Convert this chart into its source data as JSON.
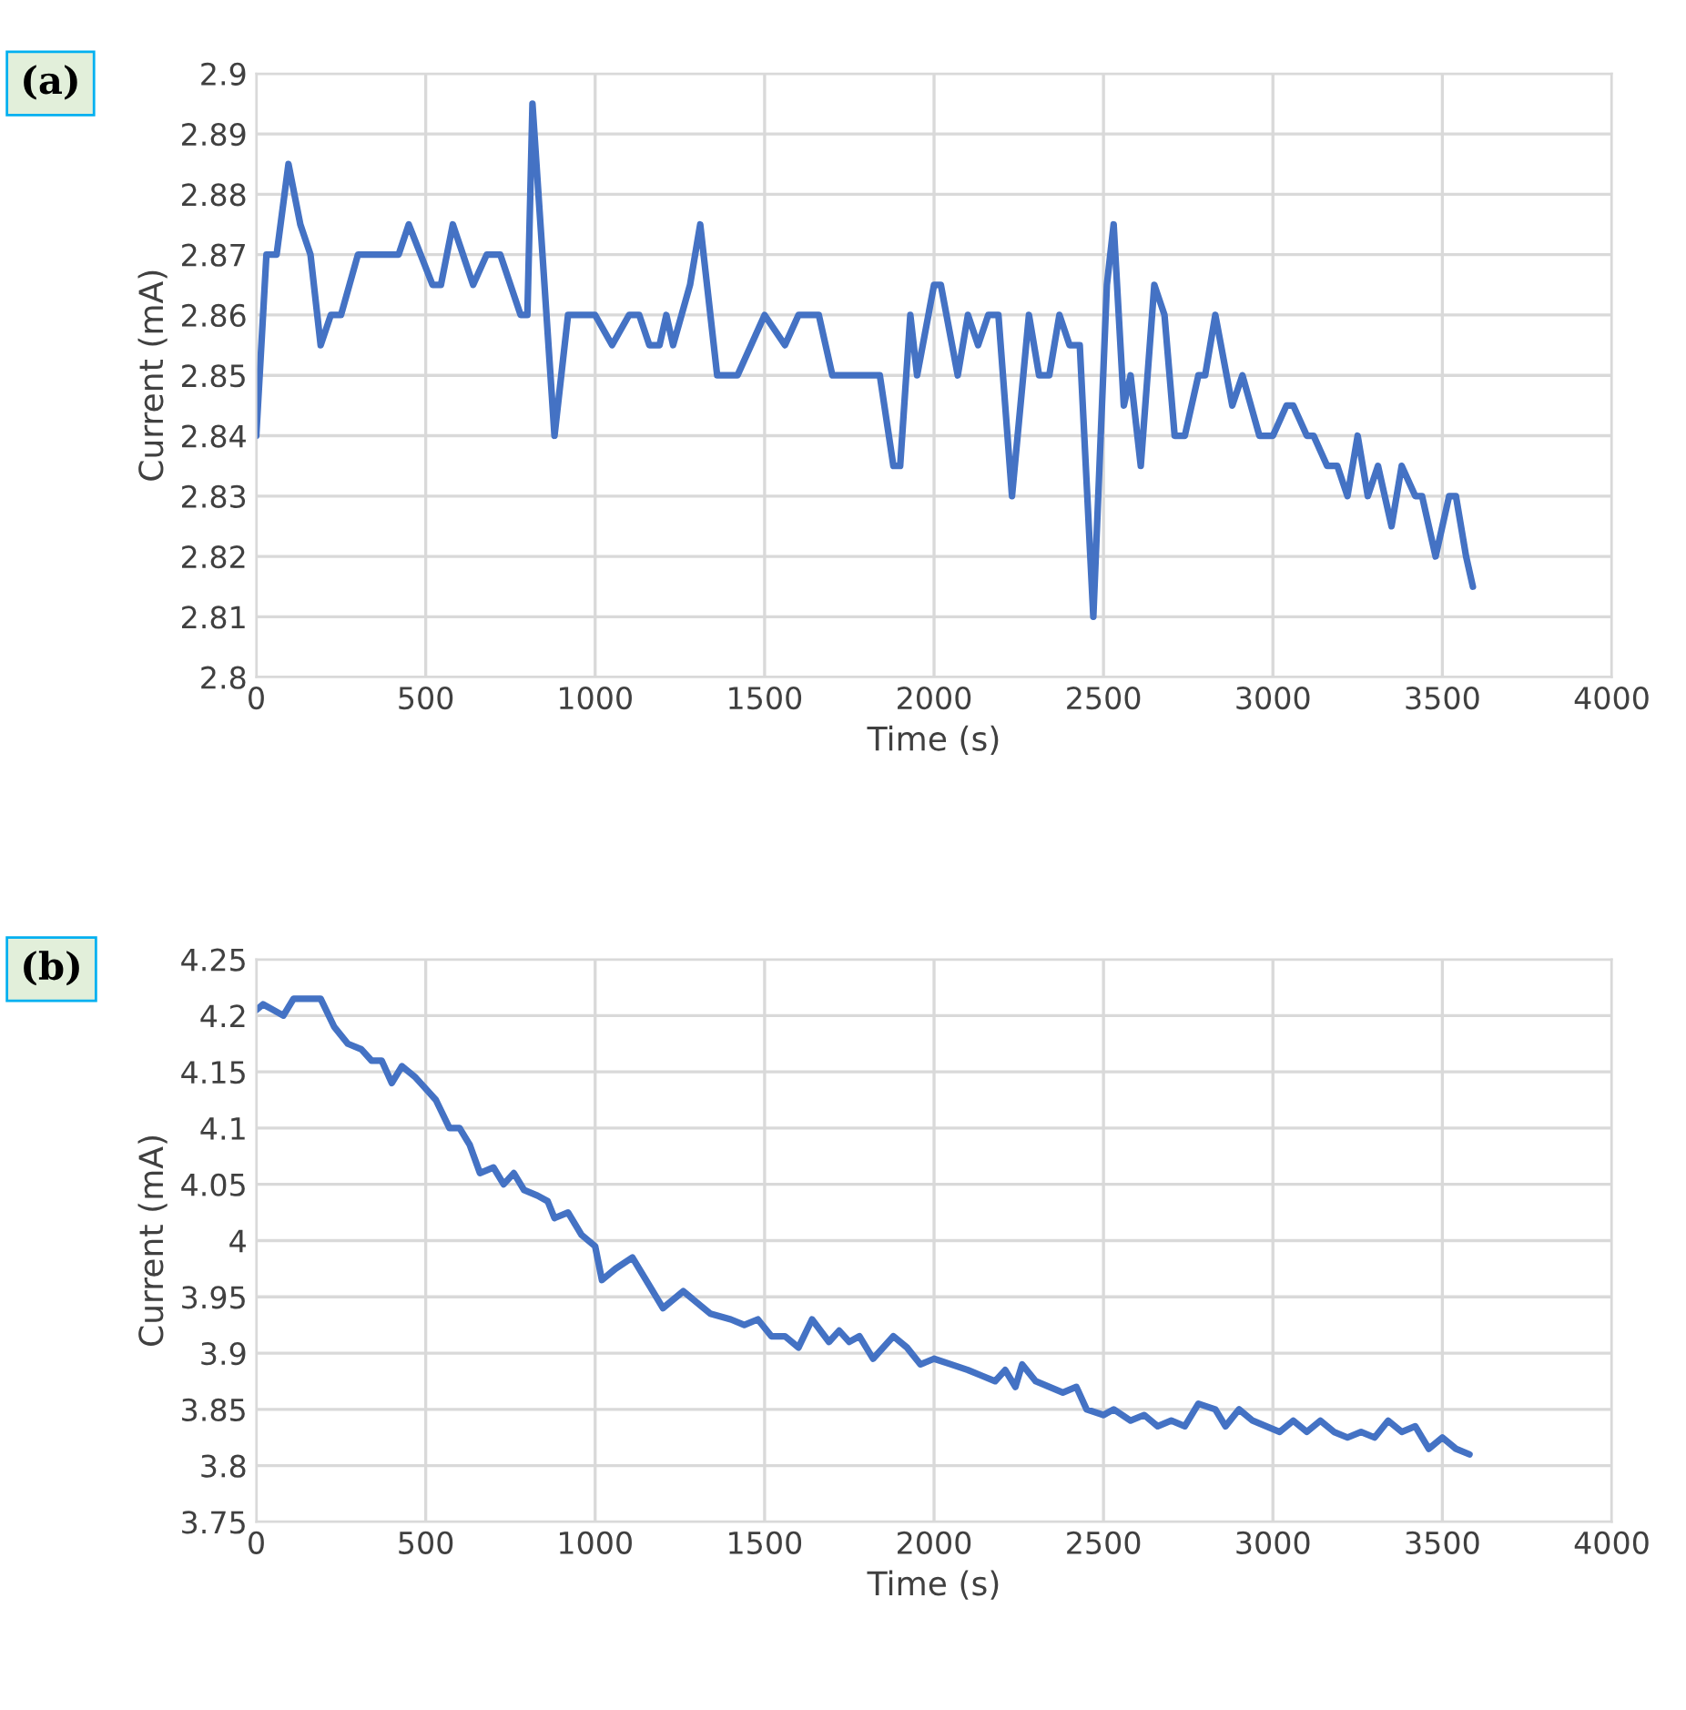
{
  "chart_data": [
    {
      "type": "line",
      "xlabel": "Time (s)",
      "ylabel": "Current (mA)",
      "annotations": [
        "(a)"
      ],
      "grid": true,
      "legend": false,
      "marker": "none",
      "line_style": "solid",
      "xlim": [
        0,
        4000
      ],
      "xticks": [
        0,
        500,
        1000,
        1500,
        2000,
        2500,
        3000,
        3500,
        4000
      ],
      "ylim": [
        2.8,
        2.9
      ],
      "yticks": [
        2.8,
        2.81,
        2.82,
        2.83,
        2.84,
        2.85,
        2.86,
        2.87,
        2.88,
        2.89,
        2.9
      ],
      "series": [
        {
          "color": "#4472c4",
          "x": [
            0,
            30,
            60,
            95,
            130,
            160,
            190,
            220,
            250,
            300,
            350,
            420,
            450,
            520,
            545,
            580,
            640,
            680,
            720,
            780,
            800,
            815,
            880,
            920,
            980,
            1000,
            1050,
            1100,
            1130,
            1160,
            1190,
            1210,
            1230,
            1280,
            1310,
            1360,
            1420,
            1500,
            1560,
            1600,
            1660,
            1700,
            1800,
            1840,
            1880,
            1900,
            1930,
            1950,
            2000,
            2020,
            2070,
            2100,
            2130,
            2160,
            2190,
            2230,
            2280,
            2310,
            2340,
            2370,
            2400,
            2430,
            2470,
            2510,
            2530,
            2560,
            2580,
            2610,
            2650,
            2680,
            2710,
            2740,
            2780,
            2800,
            2830,
            2880,
            2910,
            2960,
            3000,
            3040,
            3060,
            3100,
            3120,
            3160,
            3190,
            3220,
            3250,
            3280,
            3310,
            3350,
            3380,
            3420,
            3440,
            3480,
            3520,
            3540,
            3570,
            3590
          ],
          "values": [
            2.84,
            2.87,
            2.87,
            2.885,
            2.875,
            2.87,
            2.855,
            2.86,
            2.86,
            2.87,
            2.87,
            2.87,
            2.875,
            2.865,
            2.865,
            2.875,
            2.865,
            2.87,
            2.87,
            2.86,
            2.86,
            2.895,
            2.84,
            2.86,
            2.86,
            2.86,
            2.855,
            2.86,
            2.86,
            2.855,
            2.855,
            2.86,
            2.855,
            2.865,
            2.875,
            2.85,
            2.85,
            2.86,
            2.855,
            2.86,
            2.86,
            2.85,
            2.85,
            2.85,
            2.835,
            2.835,
            2.86,
            2.85,
            2.865,
            2.865,
            2.85,
            2.86,
            2.855,
            2.86,
            2.86,
            2.83,
            2.86,
            2.85,
            2.85,
            2.86,
            2.855,
            2.855,
            2.81,
            2.865,
            2.875,
            2.845,
            2.85,
            2.835,
            2.865,
            2.86,
            2.84,
            2.84,
            2.85,
            2.85,
            2.86,
            2.845,
            2.85,
            2.84,
            2.84,
            2.845,
            2.845,
            2.84,
            2.84,
            2.835,
            2.835,
            2.83,
            2.84,
            2.83,
            2.835,
            2.825,
            2.835,
            2.83,
            2.83,
            2.82,
            2.83,
            2.83,
            2.82,
            2.815
          ]
        }
      ]
    },
    {
      "type": "line",
      "xlabel": "Time (s)",
      "ylabel": "Current (mA)",
      "annotations": [
        "(b)"
      ],
      "grid": true,
      "legend": false,
      "marker": "none",
      "line_style": "solid",
      "xlim": [
        0,
        4000
      ],
      "xticks": [
        0,
        500,
        1000,
        1500,
        2000,
        2500,
        3000,
        3500,
        4000
      ],
      "ylim": [
        3.75,
        4.25
      ],
      "yticks": [
        3.75,
        3.8,
        3.85,
        3.9,
        3.95,
        4,
        4.05,
        4.1,
        4.15,
        4.2,
        4.25
      ],
      "series": [
        {
          "color": "#4472c4",
          "x": [
            0,
            20,
            50,
            80,
            110,
            150,
            190,
            230,
            270,
            310,
            340,
            370,
            400,
            430,
            470,
            500,
            530,
            570,
            600,
            630,
            660,
            700,
            730,
            760,
            790,
            830,
            860,
            880,
            920,
            960,
            1000,
            1020,
            1060,
            1110,
            1160,
            1200,
            1260,
            1300,
            1340,
            1400,
            1440,
            1480,
            1520,
            1560,
            1600,
            1640,
            1690,
            1720,
            1750,
            1780,
            1820,
            1880,
            1920,
            1960,
            2000,
            2050,
            2100,
            2140,
            2180,
            2210,
            2240,
            2260,
            2300,
            2340,
            2380,
            2420,
            2450,
            2500,
            2530,
            2580,
            2620,
            2660,
            2700,
            2740,
            2780,
            2830,
            2860,
            2900,
            2940,
            2980,
            3020,
            3060,
            3100,
            3140,
            3180,
            3220,
            3260,
            3300,
            3340,
            3380,
            3420,
            3460,
            3500,
            3540,
            3580
          ],
          "values": [
            4.205,
            4.21,
            4.205,
            4.2,
            4.215,
            4.215,
            4.215,
            4.19,
            4.175,
            4.17,
            4.16,
            4.16,
            4.14,
            4.155,
            4.145,
            4.135,
            4.125,
            4.1,
            4.1,
            4.085,
            4.06,
            4.065,
            4.05,
            4.06,
            4.045,
            4.04,
            4.035,
            4.02,
            4.025,
            4.005,
            3.995,
            3.965,
            3.975,
            3.985,
            3.96,
            3.94,
            3.955,
            3.945,
            3.935,
            3.93,
            3.925,
            3.93,
            3.915,
            3.915,
            3.905,
            3.93,
            3.91,
            3.92,
            3.91,
            3.915,
            3.895,
            3.915,
            3.905,
            3.89,
            3.895,
            3.89,
            3.885,
            3.88,
            3.875,
            3.885,
            3.87,
            3.89,
            3.875,
            3.87,
            3.865,
            3.87,
            3.85,
            3.845,
            3.85,
            3.84,
            3.845,
            3.835,
            3.84,
            3.835,
            3.855,
            3.85,
            3.835,
            3.85,
            3.84,
            3.835,
            3.83,
            3.84,
            3.83,
            3.84,
            3.83,
            3.825,
            3.83,
            3.825,
            3.84,
            3.83,
            3.835,
            3.815,
            3.825,
            3.815,
            3.81
          ]
        }
      ]
    }
  ]
}
